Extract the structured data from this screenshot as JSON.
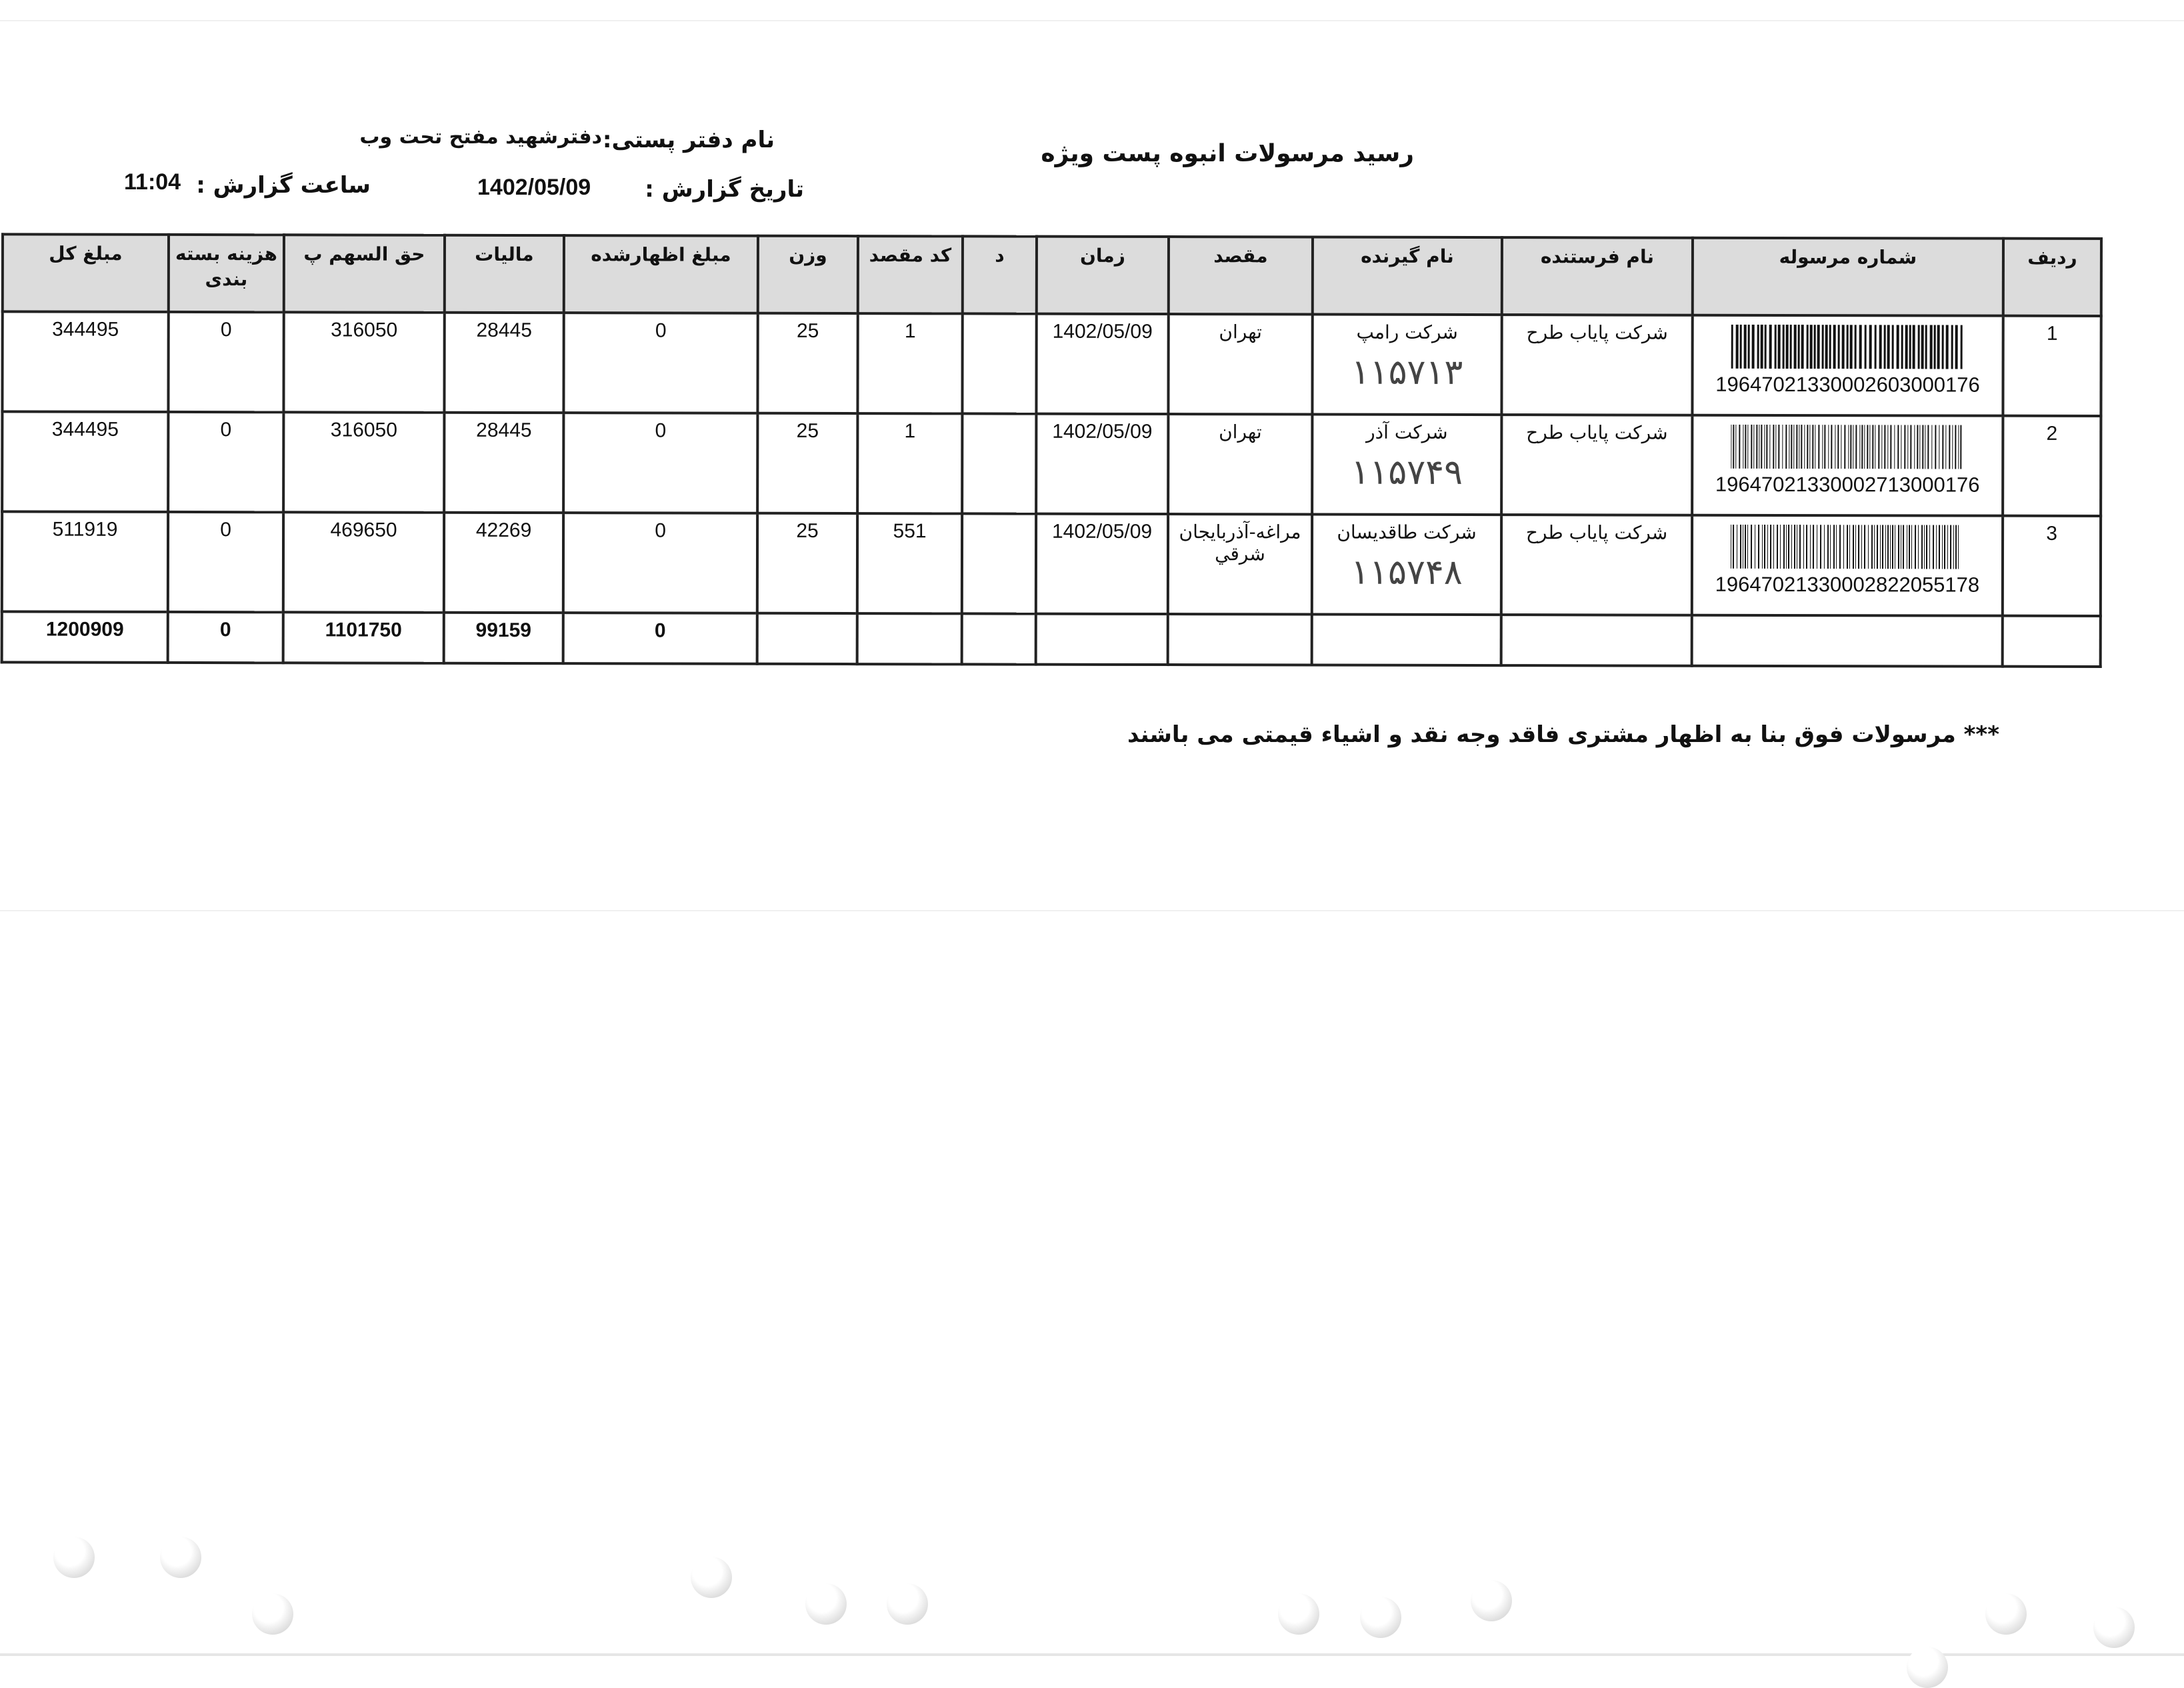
{
  "header": {
    "title": "رسید مرسولات انبوه پست ویژه",
    "office_label": "نام دفتر پستی:",
    "office_value": "دفترشهید مفتح تحت وب",
    "date_label": "تاریخ گزارش :",
    "date_value": "1402/05/09",
    "time_label": "ساعت گزارش :",
    "time_value": "11:04"
  },
  "table": {
    "columns": [
      "ردیف",
      "شماره مرسوله",
      "نام فرستنده",
      "نام گیرنده",
      "مقصد",
      "زمان",
      "د",
      "کد مقصد",
      "وزن",
      "مبلغ اظهارشده",
      "مالیات",
      "حق السهم پ",
      "هزینه بسته بندی",
      "مبلغ کل"
    ],
    "rows": [
      {
        "row": "1",
        "tracking": "19647021330002603000176",
        "sender": "شرکت پایاب طرح",
        "receiver": "شرکت رامپ",
        "handwritten": "۱۱۵۷۱۳",
        "destination": "تهران",
        "time": "1402/05/09",
        "d": "",
        "dest_code": "1",
        "weight": "25",
        "declared": "0",
        "tax": "28445",
        "share": "316050",
        "packing": "0",
        "total": "344495"
      },
      {
        "row": "2",
        "tracking": "19647021330002713000176",
        "sender": "شرکت پایاب طرح",
        "receiver": "شرکت آذر",
        "handwritten": "۱۱۵۷۴۹",
        "destination": "تهران",
        "time": "1402/05/09",
        "d": "",
        "dest_code": "1",
        "weight": "25",
        "declared": "0",
        "tax": "28445",
        "share": "316050",
        "packing": "0",
        "total": "344495"
      },
      {
        "row": "3",
        "tracking": "19647021330002822055178",
        "sender": "شرکت پایاب طرح",
        "receiver": "شرکت طاقدیسان",
        "handwritten": "۱۱۵۷۴۸",
        "destination": "مراغه-آذربایجان شرقي",
        "time": "1402/05/09",
        "d": "",
        "dest_code": "551",
        "weight": "25",
        "declared": "0",
        "tax": "42269",
        "share": "469650",
        "packing": "0",
        "total": "511919"
      }
    ],
    "totals": {
      "declared": "0",
      "tax": "99159",
      "share": "1101750",
      "packing": "0",
      "total": "1200909"
    }
  },
  "footer_note": "*** مرسولات فوق  بنا به اظهار مشتری فاقد وجه نقد و اشیاء قیمتی می باشند"
}
